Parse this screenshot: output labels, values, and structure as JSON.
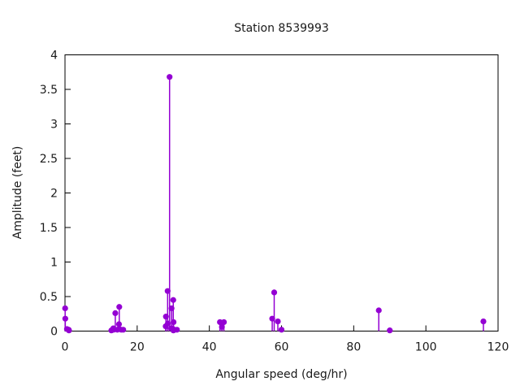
{
  "chart_data": {
    "type": "scatter",
    "subtype": "stem-impulse",
    "title": "Station 8539993",
    "xlabel": "Angular speed (deg/hr)",
    "ylabel": "Amplitude (feet)",
    "xlim": [
      0,
      120
    ],
    "ylim": [
      0,
      4
    ],
    "xticks": [
      0,
      20,
      40,
      60,
      80,
      100,
      120
    ],
    "yticks": [
      0,
      0.5,
      1,
      1.5,
      2,
      2.5,
      3,
      3.5,
      4
    ],
    "grid": false,
    "legend": "none",
    "marker_color": "#9400D3",
    "axis_color": "#000000",
    "text_color": "#1a1a1a",
    "points": [
      {
        "x": 0.04,
        "y": 0.33
      },
      {
        "x": 0.08,
        "y": 0.18
      },
      {
        "x": 0.54,
        "y": 0.03
      },
      {
        "x": 1.02,
        "y": 0.02
      },
      {
        "x": 1.1,
        "y": 0.01
      },
      {
        "x": 12.85,
        "y": 0.01
      },
      {
        "x": 13.4,
        "y": 0.04
      },
      {
        "x": 13.47,
        "y": 0.02
      },
      {
        "x": 13.94,
        "y": 0.26
      },
      {
        "x": 14.5,
        "y": 0.02
      },
      {
        "x": 14.96,
        "y": 0.1
      },
      {
        "x": 15.0,
        "y": 0.03
      },
      {
        "x": 15.04,
        "y": 0.35
      },
      {
        "x": 15.59,
        "y": 0.02
      },
      {
        "x": 16.14,
        "y": 0.02
      },
      {
        "x": 27.9,
        "y": 0.07
      },
      {
        "x": 27.97,
        "y": 0.21
      },
      {
        "x": 28.44,
        "y": 0.58
      },
      {
        "x": 28.51,
        "y": 0.11
      },
      {
        "x": 28.98,
        "y": 3.68
      },
      {
        "x": 29.46,
        "y": 0.04
      },
      {
        "x": 29.53,
        "y": 0.33
      },
      {
        "x": 29.96,
        "y": 0.03
      },
      {
        "x": 30.0,
        "y": 0.45
      },
      {
        "x": 30.04,
        "y": 0.01
      },
      {
        "x": 30.08,
        "y": 0.13
      },
      {
        "x": 31.02,
        "y": 0.02
      },
      {
        "x": 42.93,
        "y": 0.13
      },
      {
        "x": 43.48,
        "y": 0.06
      },
      {
        "x": 44.03,
        "y": 0.13
      },
      {
        "x": 57.42,
        "y": 0.18
      },
      {
        "x": 57.97,
        "y": 0.56
      },
      {
        "x": 58.98,
        "y": 0.14
      },
      {
        "x": 60.0,
        "y": 0.02
      },
      {
        "x": 86.95,
        "y": 0.3
      },
      {
        "x": 90.0,
        "y": 0.01
      },
      {
        "x": 115.94,
        "y": 0.14
      }
    ]
  }
}
